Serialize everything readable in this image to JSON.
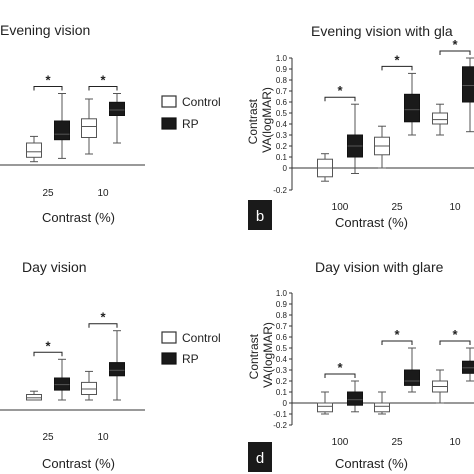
{
  "chart_data": [
    {
      "id": "a",
      "type": "boxplot",
      "title": "Evening vision",
      "xlabel": "Contrast (%)",
      "ylabel": "",
      "categories": [
        "25",
        "10"
      ],
      "ylim": [
        0,
        1
      ],
      "series": [
        {
          "name": "Control",
          "color": "#ffffff",
          "boxes": [
            {
              "min": 0.03,
              "q1": 0.07,
              "median": 0.12,
              "q3": 0.2,
              "max": 0.26
            },
            {
              "min": 0.1,
              "q1": 0.25,
              "median": 0.35,
              "q3": 0.42,
              "max": 0.6
            }
          ]
        },
        {
          "name": "RP",
          "color": "#1a1a1a",
          "boxes": [
            {
              "min": 0.06,
              "q1": 0.23,
              "median": 0.28,
              "q3": 0.4,
              "max": 0.65
            },
            {
              "min": 0.2,
              "q1": 0.45,
              "median": 0.5,
              "q3": 0.57,
              "max": 0.65
            }
          ]
        }
      ],
      "significance": [
        "*",
        "*"
      ]
    },
    {
      "id": "b",
      "type": "boxplot",
      "title": "Evening vision with gla",
      "xlabel": "Contrast (%)",
      "ylabel": "Contrast VA(logMAR)",
      "categories": [
        "100",
        "25",
        "10"
      ],
      "yticks": [
        "-0.2",
        "0",
        "0.1",
        "0.2",
        "0.3",
        "0.4",
        "0.5",
        "0.6",
        "0.7",
        "0.8",
        "0.9",
        "1.0"
      ],
      "ylim": [
        -0.2,
        1.0
      ],
      "series": [
        {
          "name": "Control",
          "color": "#ffffff",
          "boxes": [
            {
              "min": -0.12,
              "q1": -0.08,
              "median": 0.0,
              "q3": 0.08,
              "max": 0.13
            },
            {
              "min": 0.0,
              "q1": 0.12,
              "median": 0.2,
              "q3": 0.28,
              "max": 0.38
            },
            {
              "min": 0.3,
              "q1": 0.4,
              "median": 0.44,
              "q3": 0.5,
              "max": 0.58
            }
          ]
        },
        {
          "name": "RP",
          "color": "#1a1a1a",
          "boxes": [
            {
              "min": -0.05,
              "q1": 0.1,
              "median": 0.2,
              "q3": 0.3,
              "max": 0.58
            },
            {
              "min": 0.3,
              "q1": 0.42,
              "median": 0.53,
              "q3": 0.67,
              "max": 0.86
            },
            {
              "min": 0.33,
              "q1": 0.6,
              "median": 0.75,
              "q3": 0.92,
              "max": 1.0
            }
          ]
        }
      ],
      "significance": [
        "*",
        "*",
        "*"
      ]
    },
    {
      "id": "c",
      "type": "boxplot",
      "title": "Day vision",
      "xlabel": "Contrast (%)",
      "ylabel": "",
      "categories": [
        "25",
        "10"
      ],
      "ylim": [
        0,
        1
      ],
      "series": [
        {
          "name": "Control",
          "color": "#ffffff",
          "boxes": [
            {
              "min": 0.0,
              "q1": 0.0,
              "median": 0.02,
              "q3": 0.05,
              "max": 0.08
            },
            {
              "min": 0.0,
              "q1": 0.05,
              "median": 0.1,
              "q3": 0.16,
              "max": 0.26
            }
          ]
        },
        {
          "name": "RP",
          "color": "#1a1a1a",
          "boxes": [
            {
              "min": 0.0,
              "q1": 0.09,
              "median": 0.14,
              "q3": 0.2,
              "max": 0.37
            },
            {
              "min": 0.0,
              "q1": 0.22,
              "median": 0.27,
              "q3": 0.34,
              "max": 0.63
            }
          ]
        }
      ],
      "significance": [
        "*",
        "*"
      ]
    },
    {
      "id": "d",
      "type": "boxplot",
      "title": "Day vision with glare",
      "xlabel": "Contrast (%)",
      "ylabel": "Contrast VA(logMAR)",
      "categories": [
        "100",
        "25",
        "10"
      ],
      "yticks": [
        "-0.2",
        "-0.1",
        "0",
        "0.1",
        "0.2",
        "0.3",
        "0.4",
        "0.5",
        "0.6",
        "0.7",
        "0.8",
        "0.9",
        "1.0"
      ],
      "ylim": [
        -0.2,
        1.0
      ],
      "series": [
        {
          "name": "Control",
          "color": "#ffffff",
          "boxes": [
            {
              "min": -0.1,
              "q1": -0.08,
              "median": -0.03,
              "q3": 0.0,
              "max": 0.1
            },
            {
              "min": -0.1,
              "q1": -0.08,
              "median": -0.03,
              "q3": 0.0,
              "max": 0.1
            },
            {
              "min": 0.0,
              "q1": 0.1,
              "median": 0.15,
              "q3": 0.2,
              "max": 0.3
            }
          ]
        },
        {
          "name": "RP",
          "color": "#1a1a1a",
          "boxes": [
            {
              "min": -0.08,
              "q1": -0.02,
              "median": 0.03,
              "q3": 0.1,
              "max": 0.2
            },
            {
              "min": 0.1,
              "q1": 0.16,
              "median": 0.2,
              "q3": 0.3,
              "max": 0.5
            },
            {
              "min": 0.2,
              "q1": 0.27,
              "median": 0.32,
              "q3": 0.38,
              "max": 0.5
            }
          ]
        }
      ],
      "significance": [
        "*",
        "*",
        "*"
      ]
    }
  ],
  "legend": [
    {
      "label": "Control",
      "color": "#ffffff"
    },
    {
      "label": "RP",
      "color": "#1a1a1a"
    }
  ],
  "panel_labels": [
    "b",
    "d"
  ]
}
